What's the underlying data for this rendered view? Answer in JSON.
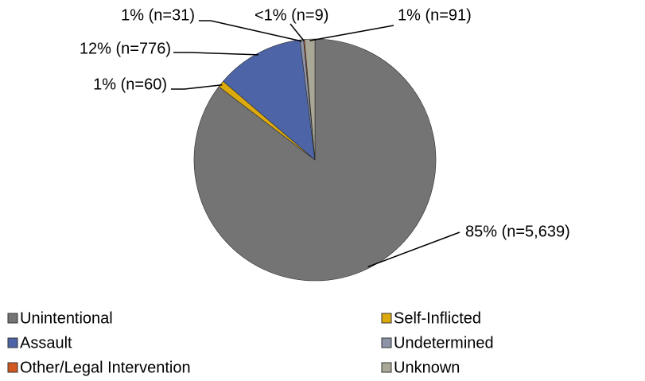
{
  "chart_data": {
    "type": "pie",
    "categories": [
      "Unintentional",
      "Self-Inflicted",
      "Assault",
      "Undetermined",
      "Other/Legal Intervention",
      "Unknown"
    ],
    "values": [
      5639,
      60,
      776,
      31,
      9,
      91
    ],
    "value_labels": [
      "85% (n=5,639)",
      "1% (n=60)",
      "12% (n=776)",
      "1% (n=31)",
      "<1% (n=9)",
      "1% (n=91)"
    ],
    "colors": [
      "#747474",
      "#dcaa0e",
      "#4d65a6",
      "#8d94a8",
      "#d3581f",
      "#a9a897"
    ]
  }
}
